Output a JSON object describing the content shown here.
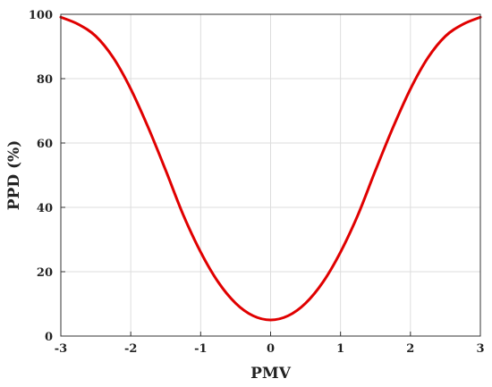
{
  "chart_data": {
    "type": "line",
    "xlabel": "PMV",
    "ylabel": "PPD (%)",
    "xlim": [
      -3,
      3
    ],
    "ylim": [
      0,
      100
    ],
    "xticks": [
      -3,
      -2,
      -1,
      0,
      1,
      2,
      3
    ],
    "yticks": [
      0,
      20,
      40,
      60,
      80,
      100
    ],
    "grid": true,
    "colors": {
      "line": "#e00000",
      "grid": "#dddddd",
      "axis": "#333333"
    },
    "series": [
      {
        "x": [
          -3.0,
          -2.75,
          -2.5,
          -2.25,
          -2.0,
          -1.75,
          -1.5,
          -1.25,
          -1.0,
          -0.75,
          -0.5,
          -0.25,
          0.0,
          0.25,
          0.5,
          0.75,
          1.0,
          1.25,
          1.5,
          1.75,
          2.0,
          2.25,
          2.5,
          2.75,
          3.0
        ],
        "values": [
          99.1,
          96.9,
          93.2,
          86.5,
          76.8,
          64.8,
          51.5,
          37.7,
          26.1,
          16.8,
          10.2,
          6.3,
          5.0,
          6.3,
          10.2,
          16.8,
          26.1,
          37.7,
          51.5,
          64.8,
          76.8,
          86.5,
          93.2,
          96.9,
          99.1
        ]
      }
    ]
  }
}
